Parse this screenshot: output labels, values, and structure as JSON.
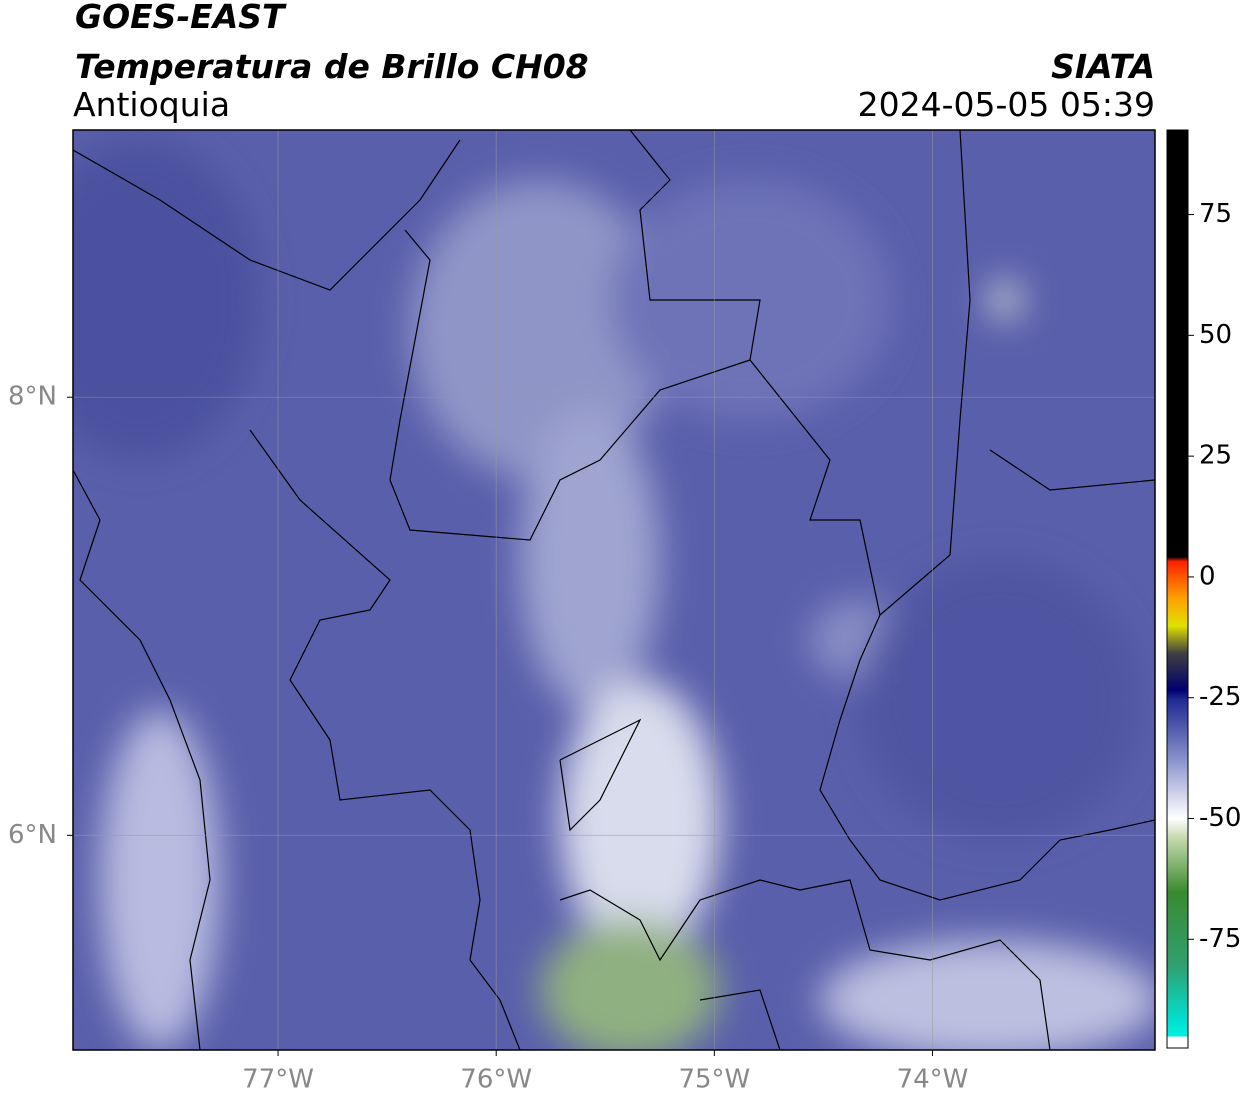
{
  "header": {
    "title": "GOES-EAST",
    "subtitle": "Temperatura de Brillo CH08",
    "region": "Antioquia",
    "source": "SIATA",
    "timestamp": "2024-05-05 05:39"
  },
  "map": {
    "xlim": [
      -77.94,
      -72.98
    ],
    "ylim": [
      5.02,
      9.22
    ],
    "xticks": [
      {
        "value": -77,
        "label": "77°W"
      },
      {
        "value": -76,
        "label": "76°W"
      },
      {
        "value": -75,
        "label": "75°W"
      },
      {
        "value": -74,
        "label": "74°W"
      }
    ],
    "yticks": [
      {
        "value": 8,
        "label": "8°N"
      },
      {
        "value": 6,
        "label": "6°N"
      }
    ],
    "grid": true
  },
  "colorbar": {
    "lim": [
      -97.5,
      92.5
    ],
    "ticks": [
      75,
      50,
      25,
      0,
      -25,
      -50,
      -75
    ]
  }
}
